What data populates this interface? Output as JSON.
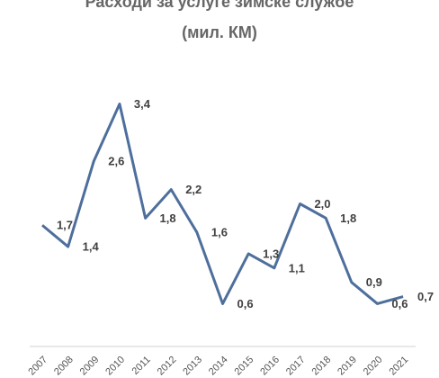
{
  "chart_data": {
    "type": "line",
    "title": "Расходи за услуге зимске службе",
    "subtitle": "(мил. КМ)",
    "categories": [
      "2007",
      "2008",
      "2009",
      "2010",
      "2011",
      "2012",
      "2013",
      "2014",
      "2015",
      "2016",
      "2017",
      "2018",
      "2019",
      "2020",
      "2021"
    ],
    "values": [
      1.7,
      1.4,
      2.6,
      3.4,
      1.8,
      2.2,
      1.6,
      0.6,
      1.3,
      1.1,
      2.0,
      1.8,
      0.9,
      0.6,
      0.7
    ],
    "value_labels": [
      "1,7",
      "1,4",
      "2,6",
      "3,4",
      "1,8",
      "2,2",
      "1,6",
      "0,6",
      "1,3",
      "1,1",
      "2,0",
      "1,8",
      "0,9",
      "0,6",
      "0,7"
    ],
    "color": "#4e6f9c",
    "ylim": [
      0,
      4
    ]
  }
}
